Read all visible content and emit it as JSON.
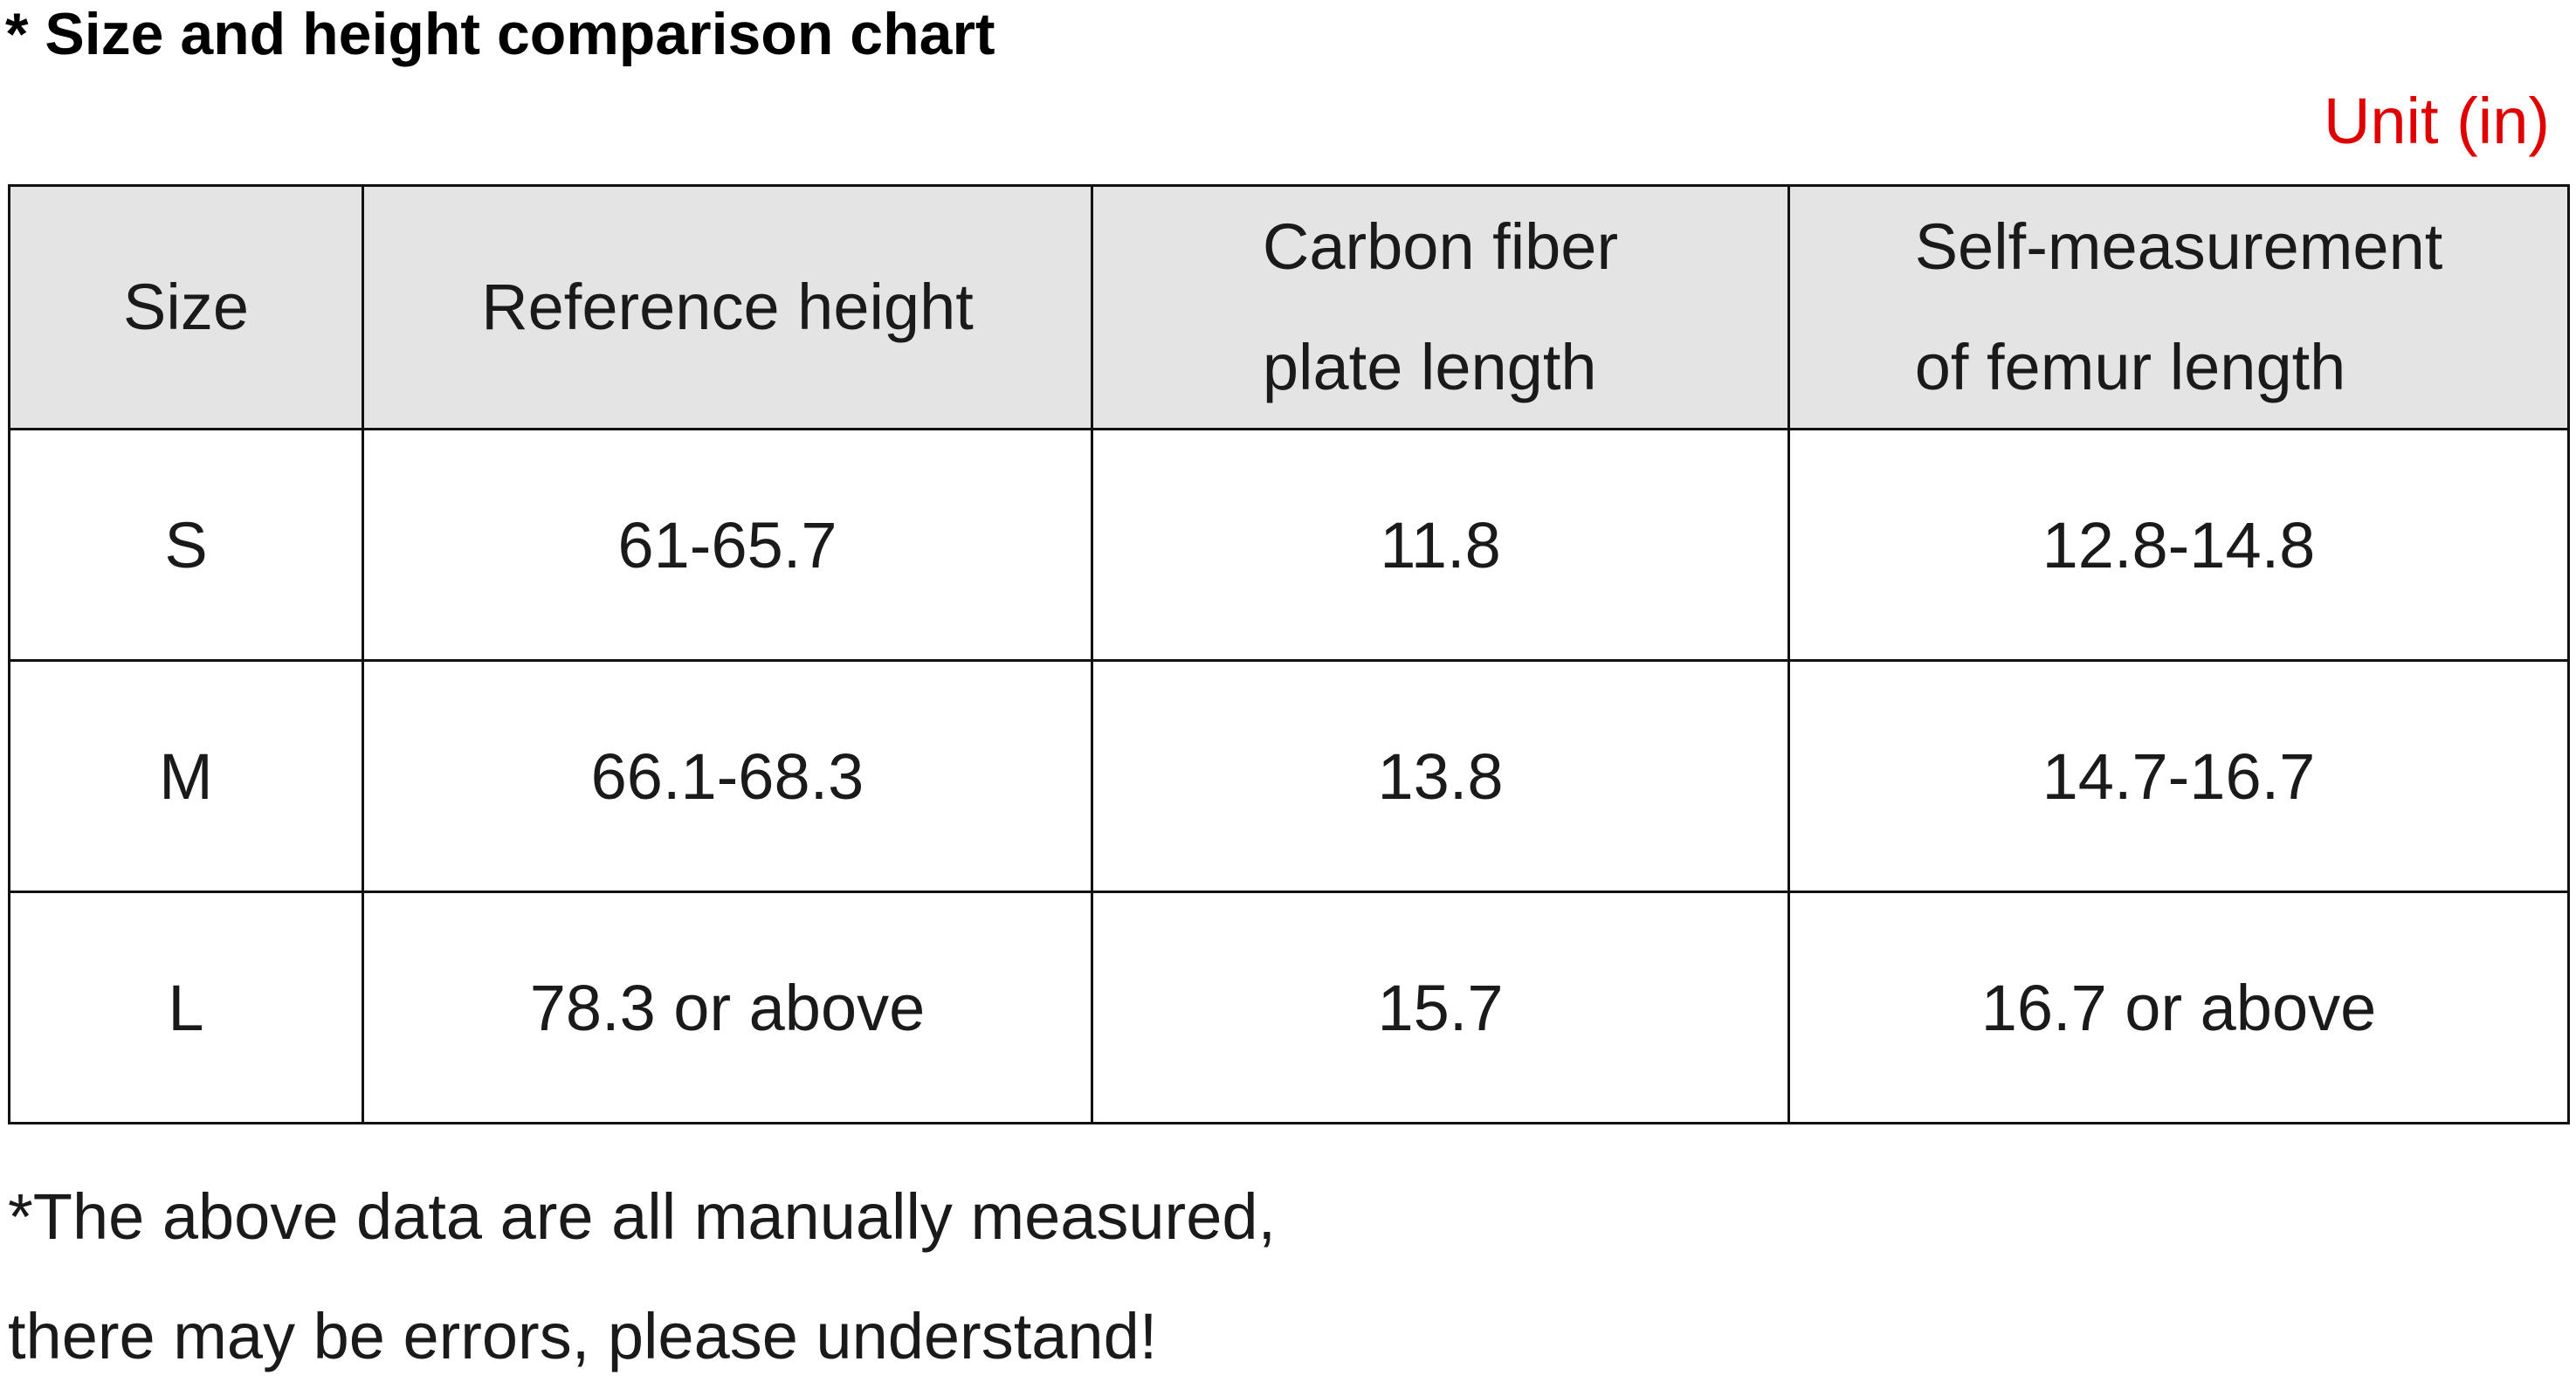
{
  "header": {
    "title": "* Size and height comparison chart",
    "unit": "Unit (in)"
  },
  "table": {
    "columns": [
      "Size",
      "Reference height",
      "Carbon fiber\nplate length",
      "Self-measurement\nof femur length"
    ],
    "rows": [
      [
        "S",
        "61-65.7",
        "11.8",
        "12.8-14.8"
      ],
      [
        "M",
        "66.1-68.3",
        "13.8",
        "14.7-16.7"
      ],
      [
        "L",
        "78.3 or above",
        "15.7",
        "16.7 or above"
      ]
    ]
  },
  "footnote": {
    "lines": [
      "*The above data are all manually measured,",
      "there may be errors, please understand!"
    ]
  }
}
